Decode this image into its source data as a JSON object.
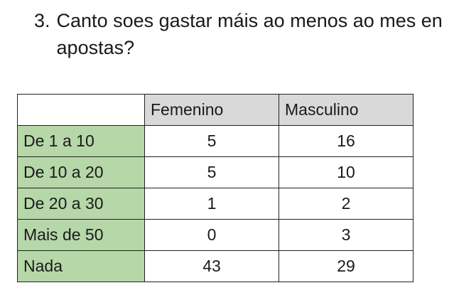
{
  "question": {
    "number": "3.",
    "text": "Canto soes gastar máis ao menos ao mes en apostas?"
  },
  "table": {
    "columns": [
      "Femenino",
      "Masculino"
    ],
    "rows": [
      {
        "label": "De 1 a 10",
        "values": [
          "5",
          "16"
        ]
      },
      {
        "label": "De 10 a 20",
        "values": [
          "5",
          "10"
        ]
      },
      {
        "label": "De 20 a 30",
        "values": [
          "1",
          "2"
        ]
      },
      {
        "label": "Mais de 50",
        "values": [
          "0",
          "3"
        ]
      },
      {
        "label": "Nada",
        "values": [
          "43",
          "29"
        ]
      }
    ]
  }
}
